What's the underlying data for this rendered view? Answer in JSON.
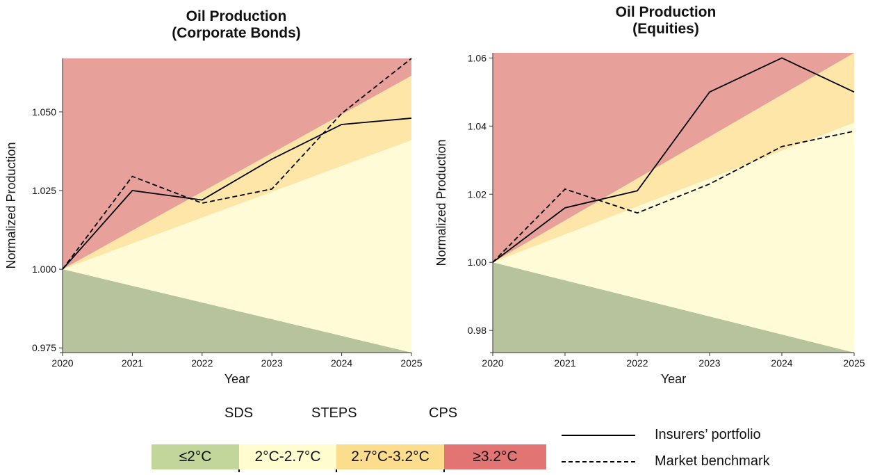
{
  "chart_data": [
    {
      "type": "line",
      "title": "Oil Production\n(Corporate Bonds)",
      "xlabel": "Year",
      "ylabel": "Normalized Production",
      "x": [
        2020,
        2021,
        2022,
        2023,
        2024,
        2025
      ],
      "xlim": [
        2020,
        2025
      ],
      "ylim": [
        0.9735,
        1.067
      ],
      "yticks": [
        "0.975",
        "1.000",
        "1.025",
        "1.050"
      ],
      "ytick_values": [
        0.975,
        1.0,
        1.025,
        1.05
      ],
      "xticks": [
        "2020",
        "2021",
        "2022",
        "2023",
        "2024",
        "2025"
      ],
      "bands_at_2025": {
        "sds_upper": 0.9735,
        "steps_upper": 1.041,
        "cps_upper": 1.0615
      },
      "series": [
        {
          "name": "Insurers’ portfolio",
          "style": "solid",
          "values": [
            1.0,
            1.025,
            1.022,
            1.035,
            1.046,
            1.048
          ]
        },
        {
          "name": "Market benchmark",
          "style": "dashed",
          "values": [
            1.0,
            1.0295,
            1.021,
            1.0255,
            1.0495,
            1.067
          ]
        }
      ]
    },
    {
      "type": "line",
      "title": "Oil Production\n(Equities)",
      "xlabel": "Year",
      "ylabel": "Normalized Production",
      "x": [
        2020,
        2021,
        2022,
        2023,
        2024,
        2025
      ],
      "xlim": [
        2020,
        2025
      ],
      "ylim": [
        0.9735,
        1.0615
      ],
      "yticks": [
        "0.98",
        "1.00",
        "1.02",
        "1.04",
        "1.06"
      ],
      "ytick_values": [
        0.98,
        1.0,
        1.02,
        1.04,
        1.06
      ],
      "xticks": [
        "2020",
        "2021",
        "2022",
        "2023",
        "2024",
        "2025"
      ],
      "bands_at_2025": {
        "sds_upper": 0.9735,
        "steps_upper": 1.041,
        "cps_upper": 1.0615
      },
      "series": [
        {
          "name": "Insurers’ portfolio",
          "style": "solid",
          "values": [
            1.0,
            1.016,
            1.021,
            1.05,
            1.06,
            1.05
          ]
        },
        {
          "name": "Market benchmark",
          "style": "dashed",
          "values": [
            1.0,
            1.0215,
            1.0145,
            1.023,
            1.034,
            1.0385
          ]
        }
      ]
    }
  ],
  "colors": {
    "sds": "#b6c39c",
    "steps": "#fffbd6",
    "cps": "#fde6a8",
    "above": "#e8a09b"
  },
  "legend": {
    "scenarios": [
      {
        "label": "≤2°C",
        "color": "#c2d59a"
      },
      {
        "label": "2°C-2.7°C",
        "color": "#fffccf"
      },
      {
        "label": "2.7°C-3.2°C",
        "color": "#fbdd8d"
      },
      {
        "label": "≥3.2°C",
        "color": "#e27573"
      }
    ],
    "markers": [
      "SDS",
      "STEPS",
      "CPS"
    ],
    "lines": [
      {
        "label": "Insurers’ portfolio",
        "style": "solid"
      },
      {
        "label": "Market benchmark",
        "style": "dashed"
      }
    ]
  }
}
